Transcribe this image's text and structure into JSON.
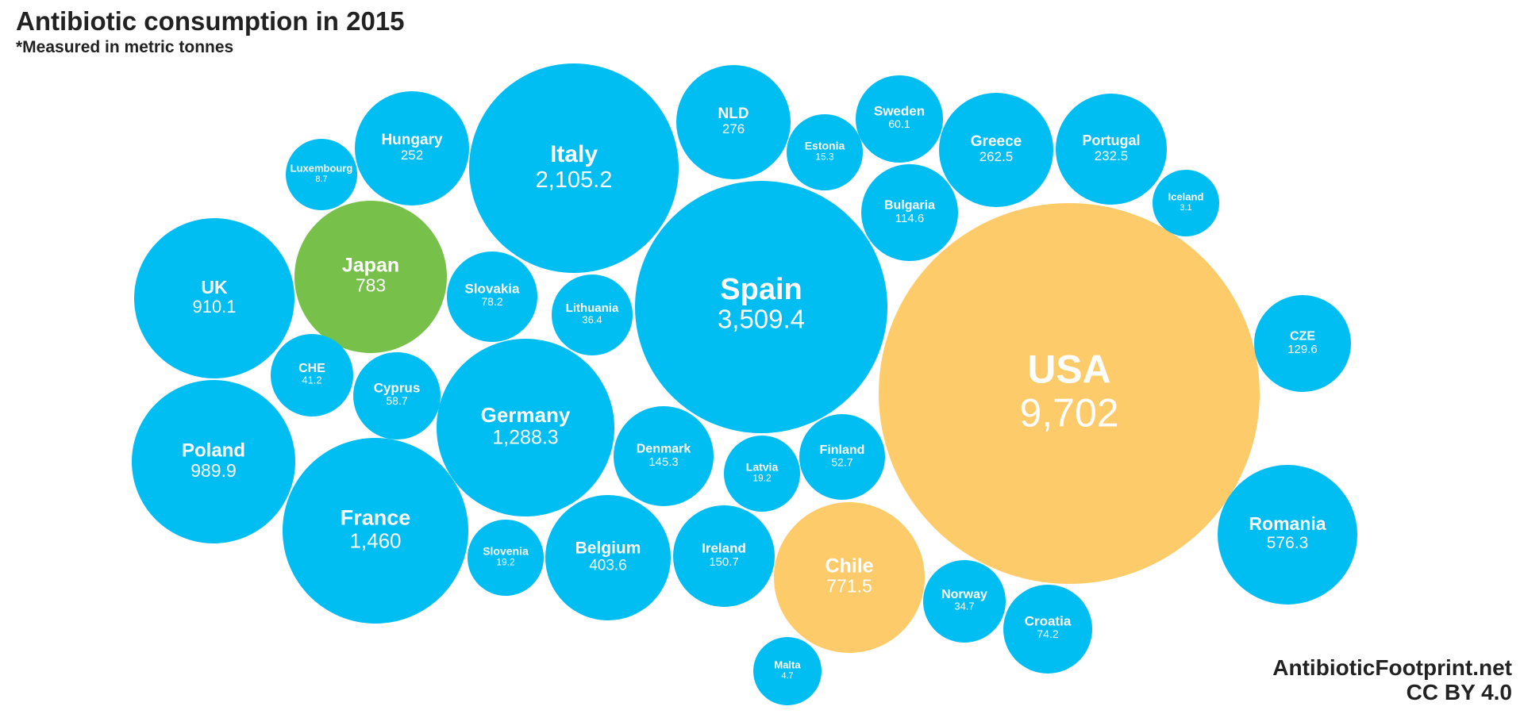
{
  "title": "Antibiotic consumption in 2015",
  "subtitle": "*Measured in metric tonnes",
  "credit": {
    "site": "AntibioticFootprint.net",
    "license": "CC BY 4.0"
  },
  "colors": {
    "default": "#00BDF2",
    "green": "#77C14A",
    "orange": "#FECB6A"
  },
  "chart_data": {
    "type": "bubble",
    "title": "Antibiotic consumption in 2015",
    "subtitle": "*Measured in metric tonnes",
    "unit": "metric tonnes",
    "items": [
      {
        "name": "USA",
        "label": "9,702",
        "value": 9702,
        "color": "orange"
      },
      {
        "name": "Spain",
        "label": "3,509.4",
        "value": 3509.4,
        "color": "default"
      },
      {
        "name": "Italy",
        "label": "2,105.2",
        "value": 2105.2,
        "color": "default"
      },
      {
        "name": "France",
        "label": "1,460",
        "value": 1460,
        "color": "default"
      },
      {
        "name": "Germany",
        "label": "1,288.3",
        "value": 1288.3,
        "color": "default"
      },
      {
        "name": "Poland",
        "label": "989.9",
        "value": 989.9,
        "color": "default"
      },
      {
        "name": "UK",
        "label": "910.1",
        "value": 910.1,
        "color": "default"
      },
      {
        "name": "Japan",
        "label": "783",
        "value": 783,
        "color": "green"
      },
      {
        "name": "Chile",
        "label": "771.5",
        "value": 771.5,
        "color": "orange"
      },
      {
        "name": "Romania",
        "label": "576.3",
        "value": 576.3,
        "color": "default"
      },
      {
        "name": "Belgium",
        "label": "403.6",
        "value": 403.6,
        "color": "default"
      },
      {
        "name": "NLD",
        "label": "276",
        "value": 276,
        "color": "default"
      },
      {
        "name": "Greece",
        "label": "262.5",
        "value": 262.5,
        "color": "default"
      },
      {
        "name": "Hungary",
        "label": "252",
        "value": 252,
        "color": "default"
      },
      {
        "name": "Portugal",
        "label": "232.5",
        "value": 232.5,
        "color": "default"
      },
      {
        "name": "Ireland",
        "label": "150.7",
        "value": 150.7,
        "color": "default"
      },
      {
        "name": "Denmark",
        "label": "145.3",
        "value": 145.3,
        "color": "default"
      },
      {
        "name": "CZE",
        "label": "129.6",
        "value": 129.6,
        "color": "default"
      },
      {
        "name": "Bulgaria",
        "label": "114.6",
        "value": 114.6,
        "color": "default"
      },
      {
        "name": "Slovakia",
        "label": "78.2",
        "value": 78.2,
        "color": "default"
      },
      {
        "name": "Croatia",
        "label": "74.2",
        "value": 74.2,
        "color": "default"
      },
      {
        "name": "Sweden",
        "label": "60.1",
        "value": 60.1,
        "color": "default"
      },
      {
        "name": "Cyprus",
        "label": "58.7",
        "value": 58.7,
        "color": "default"
      },
      {
        "name": "Finland",
        "label": "52.7",
        "value": 52.7,
        "color": "default"
      },
      {
        "name": "CHE",
        "label": "41.2",
        "value": 41.2,
        "color": "default"
      },
      {
        "name": "Lithuania",
        "label": "36.4",
        "value": 36.4,
        "color": "default"
      },
      {
        "name": "Norway",
        "label": "34.7",
        "value": 34.7,
        "color": "default"
      },
      {
        "name": "Latvia",
        "label": "19.2",
        "value": 19.2,
        "color": "default"
      },
      {
        "name": "Slovenia",
        "label": "19.2",
        "value": 19.2,
        "color": "default"
      },
      {
        "name": "Estonia",
        "label": "15.3",
        "value": 15.3,
        "color": "default"
      },
      {
        "name": "Luxembourg",
        "label": "8.7",
        "value": 8.7,
        "color": "default"
      },
      {
        "name": "Malta",
        "label": "4.7",
        "value": 4.7,
        "color": "default"
      },
      {
        "name": "Iceland",
        "label": "3.1",
        "value": 3.1,
        "color": "default"
      }
    ]
  }
}
